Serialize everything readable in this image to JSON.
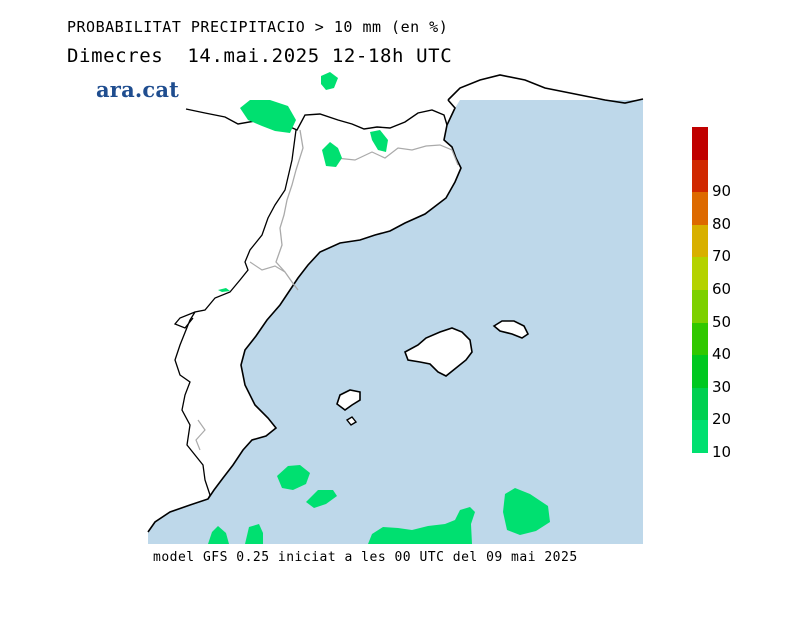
{
  "header": {
    "title": "PROBABILITAT PRECIPITACIO > 10 mm (en %)",
    "subtitle": "Dimecres  14.mai.2025 12-18h UTC"
  },
  "brand": {
    "logo_text": "ara.cat",
    "logo_color": "#1f4d8f"
  },
  "footer": {
    "text": "model GFS 0.25 iniciat a les 00 UTC del 09 mai 2025"
  },
  "colors": {
    "sea": "#bed8ea",
    "land": "#ffffff",
    "coast": "#000000",
    "border": "#aaaaaa"
  },
  "legend": {
    "items": [
      {
        "label": "",
        "color": "#c00000"
      },
      {
        "label": "90",
        "color": "#d02800"
      },
      {
        "label": "80",
        "color": "#dd6a00"
      },
      {
        "label": "70",
        "color": "#d8b000"
      },
      {
        "label": "60",
        "color": "#b4d200"
      },
      {
        "label": "50",
        "color": "#7cd000"
      },
      {
        "label": "40",
        "color": "#30c800"
      },
      {
        "label": "30",
        "color": "#00c820"
      },
      {
        "label": "20",
        "color": "#00d050"
      },
      {
        "label": "10",
        "color": "#00e070"
      }
    ]
  }
}
